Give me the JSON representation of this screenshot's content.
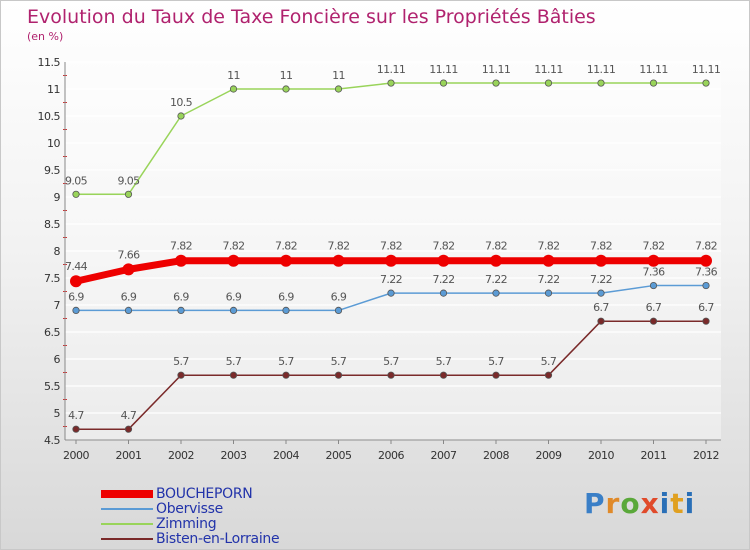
{
  "title": "Evolution du Taux de Taxe Foncière sur les Propriétés Bâties",
  "subtitle": "(en %)",
  "logo": {
    "p": "P",
    "r": "r",
    "o": "o",
    "x": "x",
    "i": "i",
    "t": "t",
    "i2": "i"
  },
  "chart_data": {
    "type": "line",
    "title": "Evolution du Taux de Taxe Foncière sur les Propriétés Bâties",
    "ylabel": "(en %)",
    "xlabel": "",
    "ylim": [
      4.5,
      11.5
    ],
    "yticks": [
      "4.5",
      "5",
      "5.5",
      "6",
      "6.5",
      "7",
      "7.5",
      "8",
      "8.5",
      "9",
      "9.5",
      "10",
      "10.5",
      "11",
      "11.5"
    ],
    "categories": [
      "2000",
      "2001",
      "2002",
      "2003",
      "2004",
      "2005",
      "2006",
      "2007",
      "2008",
      "2009",
      "2010",
      "2011",
      "2012"
    ],
    "series": [
      {
        "name": "BOUCHEPORN",
        "color": "#ee0000",
        "width": 7,
        "marker": 6,
        "values": [
          7.44,
          7.66,
          7.82,
          7.82,
          7.82,
          7.82,
          7.82,
          7.82,
          7.82,
          7.82,
          7.82,
          7.82,
          7.82
        ],
        "labels": [
          "7.44",
          "7.66",
          "7.82",
          "7.82",
          "7.82",
          "7.82",
          "7.82",
          "7.82",
          "7.82",
          "7.82",
          "7.82",
          "7.82",
          "7.82"
        ]
      },
      {
        "name": "Obervisse",
        "color": "#5b9bd5",
        "width": 1.5,
        "marker": 3.2,
        "values": [
          6.9,
          6.9,
          6.9,
          6.9,
          6.9,
          6.9,
          7.22,
          7.22,
          7.22,
          7.22,
          7.22,
          7.36,
          7.36
        ],
        "labels": [
          "6.9",
          "6.9",
          "6.9",
          "6.9",
          "6.9",
          "6.9",
          "7.22",
          "7.22",
          "7.22",
          "7.22",
          "7.22",
          "7.36",
          "7.36"
        ]
      },
      {
        "name": "Zimming",
        "color": "#99d45a",
        "width": 1.5,
        "marker": 3.2,
        "values": [
          9.05,
          9.05,
          10.5,
          11,
          11,
          11,
          11.11,
          11.11,
          11.11,
          11.11,
          11.11,
          11.11,
          11.11
        ],
        "labels": [
          "9.05",
          "9.05",
          "10.5",
          "11",
          "11",
          "11",
          "11.11",
          "11.11",
          "11.11",
          "11.11",
          "11.11",
          "11.11",
          "11.11"
        ]
      },
      {
        "name": "Bisten-en-Lorraine",
        "color": "#7a2a2a",
        "width": 1.5,
        "marker": 3.2,
        "values": [
          4.7,
          4.7,
          5.7,
          5.7,
          5.7,
          5.7,
          5.7,
          5.7,
          5.7,
          5.7,
          6.7,
          6.7,
          6.7
        ],
        "labels": [
          "4.7",
          "4.7",
          "5.7",
          "5.7",
          "5.7",
          "5.7",
          "5.7",
          "5.7",
          "5.7",
          "5.7",
          "6.7",
          "6.7",
          "6.7"
        ]
      }
    ]
  }
}
